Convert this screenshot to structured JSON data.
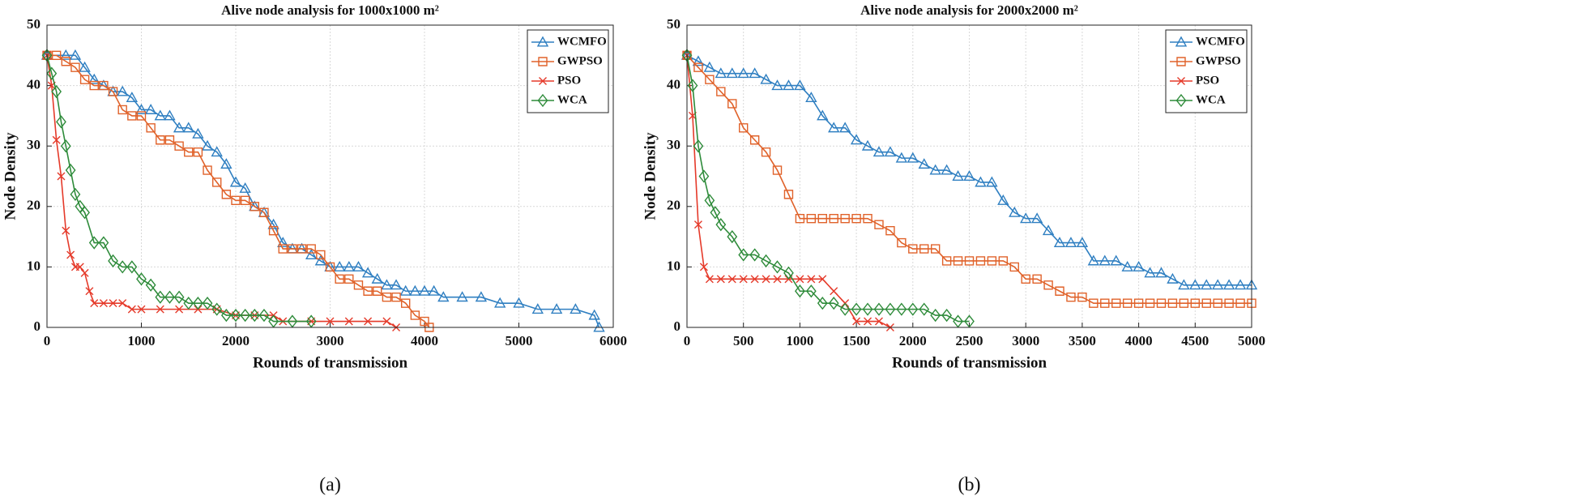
{
  "chart_data": [
    {
      "type": "line",
      "title": "Alive node analysis for 1000x1000 m²",
      "caption": "(a)",
      "x_label": "Rounds of transmission",
      "y_label": "Node Density",
      "xlim": [
        0,
        6000
      ],
      "xticks": [
        0,
        1000,
        2000,
        3000,
        4000,
        5000,
        6000
      ],
      "ylim": [
        0,
        50
      ],
      "yticks": [
        0,
        10,
        20,
        30,
        40,
        50
      ],
      "grid": true,
      "legend": "upper right",
      "series": [
        {
          "name": "WCMFO",
          "color": "#2f7fc1",
          "marker": "triangle",
          "x": [
            0,
            200,
            300,
            400,
            500,
            600,
            700,
            800,
            900,
            1000,
            1100,
            1200,
            1300,
            1400,
            1500,
            1600,
            1700,
            1800,
            1900,
            2000,
            2100,
            2200,
            2300,
            2400,
            2500,
            2600,
            2700,
            2800,
            2900,
            3000,
            3100,
            3200,
            3300,
            3400,
            3500,
            3600,
            3700,
            3800,
            3900,
            4000,
            4100,
            4200,
            4400,
            4600,
            4800,
            5000,
            5200,
            5400,
            5600,
            5800,
            5850
          ],
          "values": [
            45,
            45,
            45,
            43,
            41,
            40,
            39,
            39,
            38,
            36,
            36,
            35,
            35,
            33,
            33,
            32,
            30,
            29,
            27,
            24,
            23,
            20,
            19,
            17,
            14,
            13,
            13,
            12,
            11,
            10,
            10,
            10,
            10,
            9,
            8,
            7,
            7,
            6,
            6,
            6,
            6,
            5,
            5,
            5,
            4,
            4,
            3,
            3,
            3,
            2,
            0
          ]
        },
        {
          "name": "GWPSO",
          "color": "#e0622a",
          "marker": "square",
          "x": [
            0,
            100,
            200,
            300,
            400,
            500,
            600,
            700,
            800,
            900,
            1000,
            1100,
            1200,
            1300,
            1400,
            1500,
            1600,
            1700,
            1800,
            1900,
            2000,
            2100,
            2200,
            2300,
            2400,
            2500,
            2600,
            2700,
            2800,
            2900,
            3000,
            3100,
            3200,
            3300,
            3400,
            3500,
            3600,
            3700,
            3800,
            3900,
            4000,
            4050
          ],
          "values": [
            45,
            45,
            44,
            43,
            41,
            40,
            40,
            39,
            36,
            35,
            35,
            33,
            31,
            31,
            30,
            29,
            29,
            26,
            24,
            22,
            21,
            21,
            20,
            19,
            16,
            13,
            13,
            13,
            13,
            12,
            10,
            8,
            8,
            7,
            6,
            6,
            5,
            5,
            4,
            2,
            1,
            0
          ]
        },
        {
          "name": "PSO",
          "color": "#e53a2a",
          "marker": "x",
          "x": [
            0,
            50,
            100,
            150,
            200,
            250,
            300,
            350,
            400,
            450,
            500,
            600,
            700,
            800,
            900,
            1000,
            1200,
            1400,
            1600,
            1800,
            2000,
            2200,
            2400,
            2500,
            2800,
            3000,
            3200,
            3400,
            3600,
            3700
          ],
          "values": [
            45,
            40,
            31,
            25,
            16,
            12,
            10,
            10,
            9,
            6,
            4,
            4,
            4,
            4,
            3,
            3,
            3,
            3,
            3,
            3,
            2,
            2,
            2,
            1,
            1,
            1,
            1,
            1,
            1,
            0
          ]
        },
        {
          "name": "WCA",
          "color": "#2e8b3a",
          "marker": "diamond",
          "x": [
            0,
            50,
            100,
            150,
            200,
            250,
            300,
            350,
            400,
            500,
            600,
            700,
            800,
            900,
            1000,
            1100,
            1200,
            1300,
            1400,
            1500,
            1600,
            1700,
            1800,
            1900,
            2000,
            2100,
            2200,
            2300,
            2400,
            2600,
            2800
          ],
          "values": [
            45,
            42,
            39,
            34,
            30,
            26,
            22,
            20,
            19,
            14,
            14,
            11,
            10,
            10,
            8,
            7,
            5,
            5,
            5,
            4,
            4,
            4,
            3,
            2,
            2,
            2,
            2,
            2,
            1,
            1,
            1
          ]
        }
      ]
    },
    {
      "type": "line",
      "title": "Alive node analysis for 2000x2000 m²",
      "caption": "(b)",
      "x_label": "Rounds of transmission",
      "y_label": "Node Density",
      "xlim": [
        0,
        5000
      ],
      "xticks": [
        0,
        500,
        1000,
        1500,
        2000,
        2500,
        3000,
        3500,
        4000,
        4500,
        5000
      ],
      "ylim": [
        0,
        50
      ],
      "yticks": [
        0,
        10,
        20,
        30,
        40,
        50
      ],
      "grid": true,
      "legend": "upper right",
      "series": [
        {
          "name": "WCMFO",
          "color": "#2f7fc1",
          "marker": "triangle",
          "x": [
            0,
            100,
            200,
            300,
            400,
            500,
            600,
            700,
            800,
            900,
            1000,
            1100,
            1200,
            1300,
            1400,
            1500,
            1600,
            1700,
            1800,
            1900,
            2000,
            2100,
            2200,
            2300,
            2400,
            2500,
            2600,
            2700,
            2800,
            2900,
            3000,
            3100,
            3200,
            3300,
            3400,
            3500,
            3600,
            3700,
            3800,
            3900,
            4000,
            4100,
            4200,
            4300,
            4400,
            4500,
            4600,
            4700,
            4800,
            4900,
            5000
          ],
          "values": [
            45,
            44,
            43,
            42,
            42,
            42,
            42,
            41,
            40,
            40,
            40,
            38,
            35,
            33,
            33,
            31,
            30,
            29,
            29,
            28,
            28,
            27,
            26,
            26,
            25,
            25,
            24,
            24,
            21,
            19,
            18,
            18,
            16,
            14,
            14,
            14,
            11,
            11,
            11,
            10,
            10,
            9,
            9,
            8,
            7,
            7,
            7,
            7,
            7,
            7,
            7
          ]
        },
        {
          "name": "GWPSO",
          "color": "#e0622a",
          "marker": "square",
          "x": [
            0,
            100,
            200,
            300,
            400,
            500,
            600,
            700,
            800,
            900,
            1000,
            1100,
            1200,
            1300,
            1400,
            1500,
            1600,
            1700,
            1800,
            1900,
            2000,
            2100,
            2200,
            2300,
            2400,
            2500,
            2600,
            2700,
            2800,
            2900,
            3000,
            3100,
            3200,
            3300,
            3400,
            3500,
            3600,
            3700,
            3800,
            3900,
            4000,
            4100,
            4200,
            4300,
            4400,
            4500,
            4600,
            4700,
            4800,
            4900,
            5000
          ],
          "values": [
            45,
            43,
            41,
            39,
            37,
            33,
            31,
            29,
            26,
            22,
            18,
            18,
            18,
            18,
            18,
            18,
            18,
            17,
            16,
            14,
            13,
            13,
            13,
            11,
            11,
            11,
            11,
            11,
            11,
            10,
            8,
            8,
            7,
            6,
            5,
            5,
            4,
            4,
            4,
            4,
            4,
            4,
            4,
            4,
            4,
            4,
            4,
            4,
            4,
            4,
            4
          ]
        },
        {
          "name": "PSO",
          "color": "#e53a2a",
          "marker": "x",
          "x": [
            0,
            50,
            100,
            150,
            200,
            300,
            400,
            500,
            600,
            700,
            800,
            900,
            1000,
            1100,
            1200,
            1300,
            1400,
            1500,
            1600,
            1700,
            1800
          ],
          "values": [
            45,
            35,
            17,
            10,
            8,
            8,
            8,
            8,
            8,
            8,
            8,
            8,
            8,
            8,
            8,
            6,
            4,
            1,
            1,
            1,
            0
          ]
        },
        {
          "name": "WCA",
          "color": "#2e8b3a",
          "marker": "diamond",
          "x": [
            0,
            50,
            100,
            150,
            200,
            250,
            300,
            400,
            500,
            600,
            700,
            800,
            900,
            1000,
            1100,
            1200,
            1300,
            1400,
            1500,
            1600,
            1700,
            1800,
            1900,
            2000,
            2100,
            2200,
            2300,
            2400,
            2500
          ],
          "values": [
            45,
            40,
            30,
            25,
            21,
            19,
            17,
            15,
            12,
            12,
            11,
            10,
            9,
            6,
            6,
            4,
            4,
            3,
            3,
            3,
            3,
            3,
            3,
            3,
            3,
            2,
            2,
            1,
            1
          ]
        }
      ]
    }
  ]
}
